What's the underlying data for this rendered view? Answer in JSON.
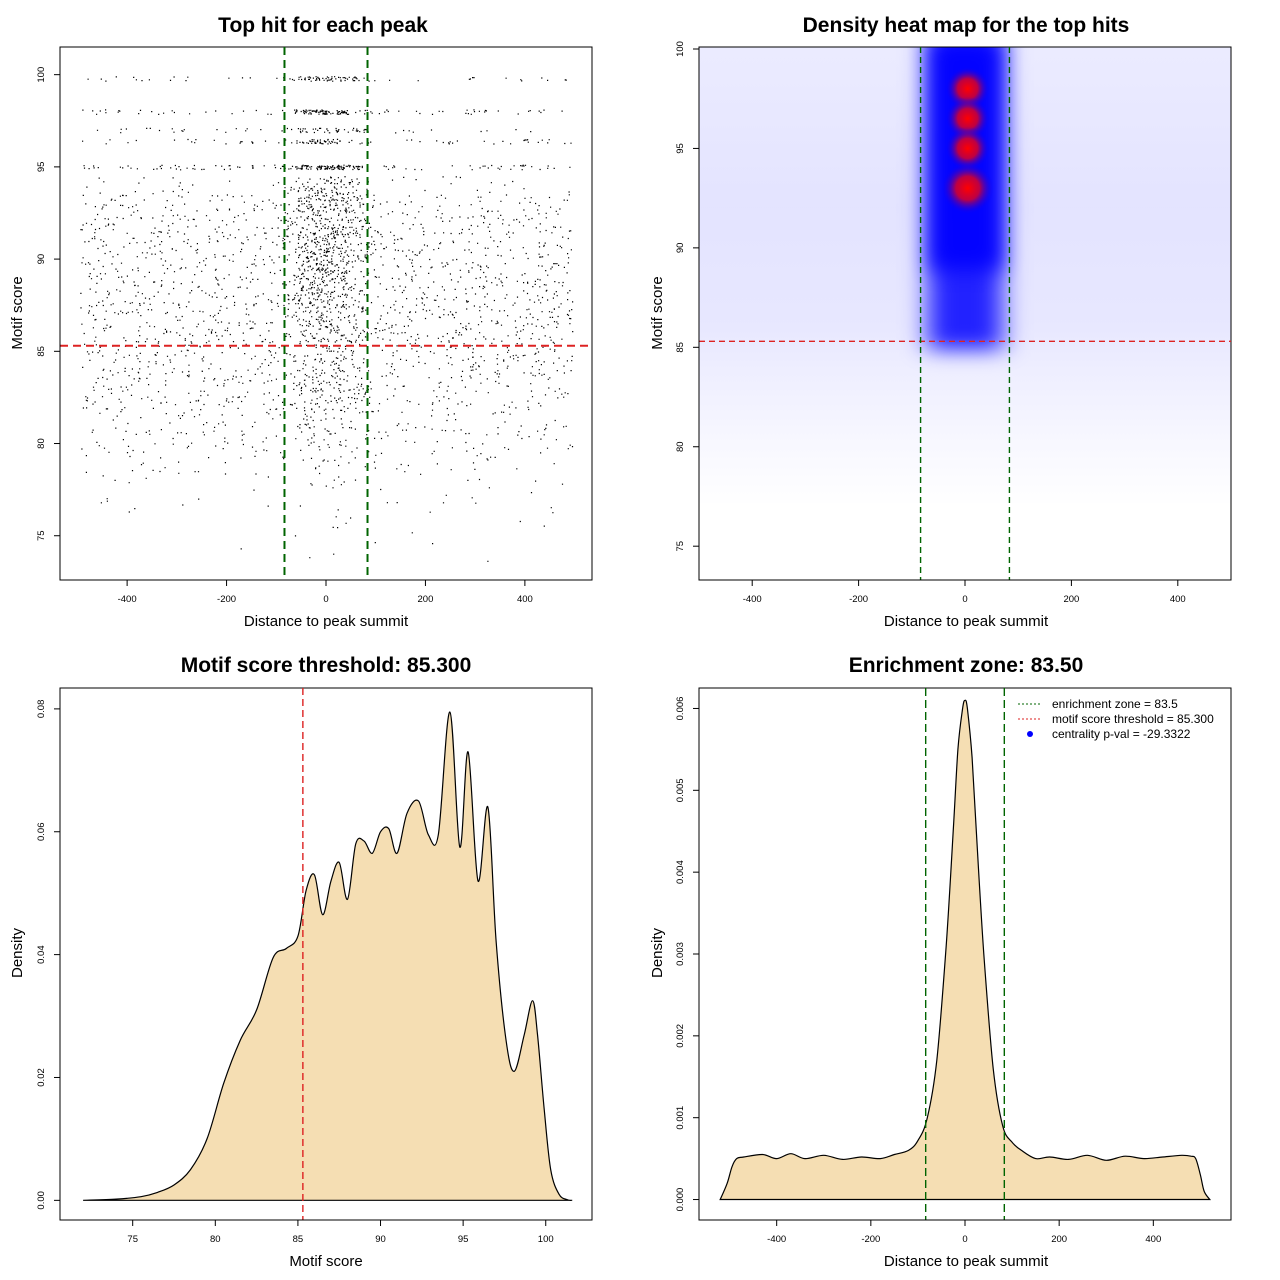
{
  "colors": {
    "threshold_line": "#dd2222",
    "zone_line": "#006400",
    "density_fill": "#f5deb3",
    "heat_low": "#ffffff",
    "heat_mid": "#0000ff",
    "heat_high": "#ff0000",
    "points": "#000000",
    "centrality_point": "#0000ff"
  },
  "chart_data": [
    {
      "id": "scatter",
      "type": "scatter",
      "title": "Top hit for each peak",
      "xlabel": "Distance to peak summit",
      "ylabel": "Motif score",
      "xlim": [
        -535,
        535
      ],
      "ylim": [
        72.6,
        101.5
      ],
      "xticks": [
        -400,
        -200,
        0,
        200,
        400
      ],
      "yticks": [
        75,
        80,
        85,
        90,
        95,
        100
      ],
      "threshold": 85.3,
      "zone": [
        -83.5,
        83.5
      ],
      "points_note": "dense cloud of top hits; x from -500 to 500; score 73.5 to 99.9; strongly enriched near summit at high scores"
    },
    {
      "id": "heatmap",
      "type": "heatmap",
      "title": "Density heat map for the top hits",
      "xlabel": "Distance to peak summit",
      "ylabel": "Motif score",
      "xlim": [
        -500,
        500
      ],
      "ylim": [
        73.3,
        100.1
      ],
      "xticks": [
        -400,
        -200,
        0,
        200,
        400
      ],
      "yticks": [
        75,
        80,
        85,
        90,
        95,
        100
      ],
      "threshold": 85.3,
      "zone": [
        -83.5,
        83.5
      ],
      "hotspots": [
        {
          "x": 5,
          "y": 98.0
        },
        {
          "x": 5,
          "y": 96.5
        },
        {
          "x": 5,
          "y": 95.0
        },
        {
          "x": 5,
          "y": 93.0
        }
      ]
    },
    {
      "id": "score_density",
      "type": "area",
      "title": "Motif score threshold: 85.300",
      "xlabel": "Motif score",
      "ylabel": "Density",
      "xlim": [
        70.6,
        102.8
      ],
      "ylim": [
        -0.0032,
        0.0834
      ],
      "xticks": [
        75,
        80,
        85,
        90,
        95,
        100
      ],
      "yticks": [
        0.0,
        0.02,
        0.04,
        0.06,
        0.08
      ],
      "ytick_labels": [
        "0.00",
        "0.02",
        "0.04",
        "0.06",
        "0.08"
      ],
      "threshold": 85.3,
      "x": [
        72,
        74,
        75.5,
        76.5,
        77.5,
        78.5,
        79.5,
        80.5,
        81.5,
        82.5,
        83.5,
        84.3,
        85.0,
        85.5,
        86.0,
        86.5,
        87.0,
        87.5,
        88.0,
        88.5,
        89.0,
        89.5,
        90.0,
        90.5,
        91.0,
        91.6,
        92.3,
        92.9,
        93.5,
        94.2,
        94.8,
        95.3,
        95.9,
        96.5,
        97.0,
        97.6,
        98.1,
        98.7,
        99.2,
        99.5,
        99.9,
        100.3,
        100.8,
        101.3,
        101.6
      ],
      "y": [
        0.0,
        0.0002,
        0.0006,
        0.0013,
        0.0025,
        0.005,
        0.01,
        0.019,
        0.026,
        0.031,
        0.0395,
        0.041,
        0.043,
        0.0505,
        0.053,
        0.0465,
        0.052,
        0.055,
        0.049,
        0.058,
        0.0585,
        0.0565,
        0.06,
        0.0605,
        0.0565,
        0.063,
        0.065,
        0.0595,
        0.0595,
        0.0795,
        0.0575,
        0.073,
        0.052,
        0.064,
        0.042,
        0.026,
        0.021,
        0.027,
        0.0325,
        0.027,
        0.015,
        0.005,
        0.001,
        0.0001,
        0.0
      ],
      "fill": "#f5deb3"
    },
    {
      "id": "distance_density",
      "type": "area",
      "title": "Enrichment zone: 83.50",
      "xlabel": "Distance to peak summit",
      "ylabel": "Density",
      "xlim": [
        -565,
        565
      ],
      "ylim": [
        -0.00025,
        0.00625
      ],
      "xticks": [
        -400,
        -200,
        0,
        200,
        400
      ],
      "yticks": [
        0.0,
        0.001,
        0.002,
        0.003,
        0.004,
        0.005,
        0.006
      ],
      "ytick_labels": [
        "0.000",
        "0.001",
        "0.002",
        "0.003",
        "0.004",
        "0.005",
        "0.006"
      ],
      "zone": [
        -83.5,
        83.5
      ],
      "x": [
        -520,
        -505,
        -495,
        -485,
        -470,
        -430,
        -400,
        -370,
        -340,
        -300,
        -260,
        -220,
        -180,
        -150,
        -120,
        -100,
        -80,
        -60,
        -40,
        -25,
        -15,
        -5,
        0,
        5,
        15,
        25,
        40,
        60,
        80,
        100,
        120,
        150,
        180,
        220,
        260,
        300,
        340,
        380,
        420,
        460,
        480,
        490,
        500,
        508,
        520
      ],
      "y": [
        0.0,
        0.0002,
        0.0004,
        0.0005,
        0.00052,
        0.00055,
        0.0005,
        0.00056,
        0.0005,
        0.00054,
        0.00049,
        0.00052,
        0.0005,
        0.00055,
        0.0006,
        0.00072,
        0.001,
        0.0017,
        0.0031,
        0.0045,
        0.0055,
        0.006,
        0.0061,
        0.006,
        0.0054,
        0.0044,
        0.003,
        0.0016,
        0.0009,
        0.0007,
        0.0006,
        0.0005,
        0.00052,
        0.00049,
        0.00054,
        0.00048,
        0.00053,
        0.0005,
        0.00052,
        0.00054,
        0.00053,
        0.0005,
        0.0003,
        0.0001,
        0.0
      ],
      "fill": "#f5deb3",
      "legend": [
        {
          "label": "enrichment zone = 83.5",
          "color": "#006400",
          "kind": "dotted"
        },
        {
          "label": "motif score threshold = 85.300",
          "color": "#dd2222",
          "kind": "dotted"
        },
        {
          "label": "centrality p-val = -29.3322",
          "color": "#0000ff",
          "kind": "point"
        }
      ]
    }
  ]
}
